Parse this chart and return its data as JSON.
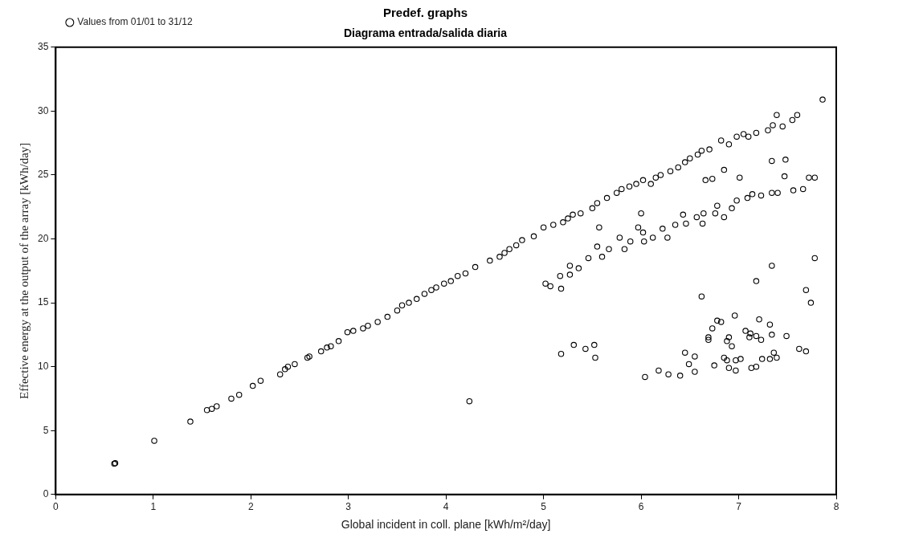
{
  "chart_data": {
    "type": "scatter",
    "title": "Predef. graphs",
    "subtitle": "Diagrama entrada/salida diaria",
    "xlabel": "Global incident in coll. plane [kWh/m²/day]",
    "ylabel": "Effective energy at the output of the array [kWh/day]",
    "xlim": [
      0,
      8
    ],
    "xticks": [
      0,
      1,
      2,
      3,
      4,
      5,
      6,
      7,
      8
    ],
    "ylim": [
      0,
      35
    ],
    "yticks": [
      0,
      5,
      10,
      15,
      20,
      25,
      30,
      35
    ],
    "grid": false,
    "legend": "top left",
    "marker": "circle",
    "series": [
      {
        "name": "Values from 01/01 to 31/12",
        "color": "#000000",
        "x": [
          0.6,
          0.61,
          1.01,
          1.38,
          1.55,
          1.6,
          1.65,
          1.8,
          1.88,
          2.02,
          2.1,
          2.3,
          2.35,
          2.38,
          2.45,
          2.58,
          2.6,
          2.72,
          2.78,
          2.82,
          2.9,
          2.99,
          3.05,
          3.15,
          3.2,
          3.3,
          3.4,
          3.5,
          3.55,
          3.62,
          3.7,
          3.78,
          3.85,
          3.9,
          3.98,
          4.05,
          4.12,
          4.2,
          4.3,
          4.45,
          4.55,
          4.6,
          4.65,
          4.72,
          4.78,
          4.9,
          5.0,
          5.1,
          5.2,
          5.25,
          5.3,
          5.38,
          5.5,
          5.55,
          5.65,
          5.75,
          5.8,
          5.88,
          5.95,
          6.02,
          6.1,
          6.15,
          6.2,
          6.3,
          6.38,
          6.45,
          6.5,
          6.58,
          6.62,
          6.7,
          6.82,
          6.9,
          6.98,
          7.05,
          7.1,
          7.18,
          7.3,
          7.35,
          7.39,
          7.45,
          7.55,
          7.6,
          7.86,
          7.48,
          7.34,
          6.85,
          7.01,
          6.66,
          6.73,
          7.47,
          7.72,
          7.78,
          7.66,
          7.56,
          7.4,
          7.34,
          7.23,
          7.14,
          7.09,
          6.98,
          6.93,
          6.78,
          6.85,
          6.76,
          6.64,
          6.57,
          6.63,
          6.46,
          6.43,
          6.35,
          6.27,
          6.22,
          6.12,
          6.03,
          6.02,
          5.97,
          6.0,
          5.89,
          5.83,
          5.78,
          5.67,
          5.6,
          5.55,
          5.46,
          5.57,
          5.36,
          5.27,
          5.27,
          5.17,
          5.02,
          5.07,
          5.18,
          7.78,
          7.34,
          7.18,
          7.69,
          7.74,
          6.62,
          6.96,
          6.78,
          6.82,
          6.73,
          7.21,
          7.32,
          7.07,
          7.12,
          7.11,
          7.18,
          7.23,
          7.34,
          7.49,
          6.69,
          6.69,
          6.9,
          6.88,
          6.93,
          7.62,
          7.69,
          7.36,
          7.39,
          7.32,
          7.24,
          7.02,
          6.97,
          6.85,
          6.88,
          6.75,
          6.9,
          6.97,
          7.13,
          7.18,
          6.45,
          6.55,
          6.49,
          6.55,
          6.4,
          6.28,
          6.18,
          6.04,
          5.18,
          5.31,
          5.43,
          5.52,
          5.53,
          4.24
        ],
        "values": [
          2.4,
          2.45,
          4.2,
          5.7,
          6.6,
          6.7,
          6.9,
          7.5,
          7.8,
          8.5,
          8.9,
          9.4,
          9.8,
          10.0,
          10.2,
          10.7,
          10.8,
          11.2,
          11.5,
          11.6,
          12.0,
          12.7,
          12.8,
          13.0,
          13.2,
          13.5,
          13.9,
          14.4,
          14.8,
          15.0,
          15.3,
          15.7,
          16.0,
          16.2,
          16.5,
          16.7,
          17.1,
          17.3,
          17.8,
          18.3,
          18.6,
          18.9,
          19.2,
          19.5,
          19.9,
          20.2,
          20.9,
          21.1,
          21.3,
          21.6,
          21.9,
          22.0,
          22.4,
          22.8,
          23.2,
          23.6,
          23.9,
          24.1,
          24.3,
          24.6,
          24.3,
          24.8,
          25.0,
          25.3,
          25.6,
          26.0,
          26.3,
          26.6,
          26.9,
          27.0,
          27.7,
          27.4,
          28.0,
          28.2,
          28.0,
          28.3,
          28.5,
          28.9,
          29.7,
          28.8,
          29.3,
          29.7,
          30.9,
          26.2,
          26.1,
          25.4,
          24.8,
          24.6,
          24.7,
          24.9,
          24.8,
          24.8,
          23.9,
          23.8,
          23.6,
          23.6,
          23.4,
          23.5,
          23.2,
          23.0,
          22.4,
          22.6,
          21.7,
          22.0,
          22.0,
          21.7,
          21.2,
          21.2,
          21.9,
          21.1,
          20.1,
          20.8,
          20.1,
          19.8,
          20.5,
          20.9,
          22.0,
          19.8,
          19.2,
          20.1,
          19.2,
          18.6,
          19.4,
          18.5,
          20.9,
          17.7,
          17.9,
          17.2,
          17.1,
          16.5,
          16.3,
          16.1,
          18.5,
          17.9,
          16.7,
          16.0,
          15.0,
          15.5,
          14.0,
          13.6,
          13.5,
          13.0,
          13.7,
          13.3,
          12.8,
          12.6,
          12.3,
          12.4,
          12.1,
          12.5,
          12.4,
          12.3,
          12.1,
          12.3,
          12.0,
          11.6,
          11.4,
          11.2,
          11.1,
          10.7,
          10.6,
          10.6,
          10.6,
          10.5,
          10.7,
          10.5,
          10.1,
          9.9,
          9.7,
          9.9,
          10.0,
          11.1,
          10.8,
          10.2,
          9.6,
          9.3,
          9.4,
          9.7,
          9.2,
          11.0,
          11.7,
          11.4,
          11.7,
          10.7,
          7.3
        ]
      }
    ]
  }
}
